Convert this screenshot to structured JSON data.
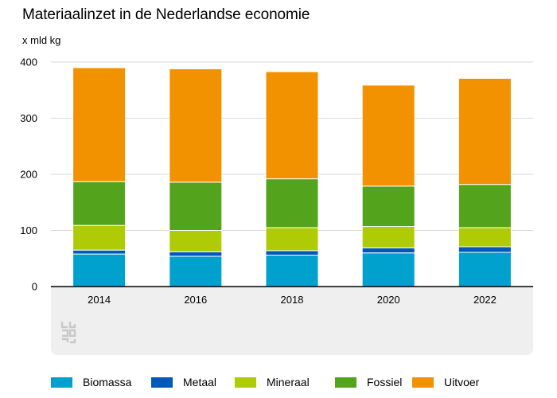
{
  "title": "Materiaalinzet in de Nederlandse economie",
  "logo_icon": "cbs-logo-icon",
  "chart_data": {
    "type": "bar",
    "stacked": true,
    "title": "Materiaalinzet in de Nederlandse economie",
    "ylabel": "x mld kg",
    "xlabel": "",
    "categories": [
      "2014",
      "2016",
      "2018",
      "2020",
      "2022"
    ],
    "ylim": [
      0,
      400
    ],
    "yticks": [
      "0",
      "100",
      "200",
      "300",
      "400"
    ],
    "grid": true,
    "legend_position": "bottom",
    "series": [
      {
        "name": "Biomassa",
        "color": "#00a1cd",
        "values": [
          58,
          54,
          56,
          60,
          61
        ]
      },
      {
        "name": "Metaal",
        "color": "#0058b8",
        "values": [
          7,
          8,
          8,
          9,
          10
        ]
      },
      {
        "name": "Mineraal",
        "color": "#afcb05",
        "values": [
          44,
          38,
          41,
          38,
          34
        ]
      },
      {
        "name": "Fossiel",
        "color": "#53a31d",
        "values": [
          78,
          86,
          87,
          72,
          77
        ]
      },
      {
        "name": "Uitvoer",
        "color": "#f39200",
        "values": [
          203,
          202,
          191,
          180,
          189
        ]
      }
    ]
  }
}
